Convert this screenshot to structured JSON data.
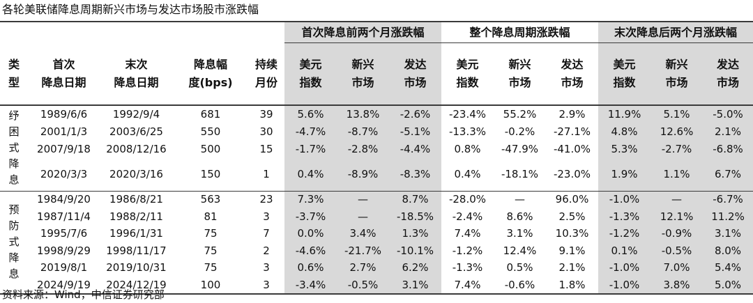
{
  "title": "各轮美联储降息周期新兴市场与发达市场股市涨跌幅",
  "source": "资料来源：Wind，中信证券研究部",
  "group_headers": [
    "首次降息前两个月涨跌幅",
    "整个降息周期涨跌幅",
    "末次降息后两个月涨跌幅"
  ],
  "col_headers": {
    "type": [
      "类",
      "型"
    ],
    "first_date": [
      "首次",
      "降息日期"
    ],
    "last_date": [
      "末次",
      "降息日期"
    ],
    "bps": [
      "降息幅",
      "度(bps)"
    ],
    "months": [
      "持续",
      "月份"
    ],
    "usd": [
      "美元",
      "指数"
    ],
    "em": [
      "新兴",
      "市场"
    ],
    "dm": [
      "发达",
      "市场"
    ]
  },
  "categories": [
    {
      "chars": [
        "纾",
        "困",
        "式",
        "降",
        "息"
      ]
    },
    {
      "chars": [
        "预",
        "防",
        "式",
        "降",
        "息"
      ]
    }
  ],
  "rows": [
    {
      "first": "1989/6/6",
      "last": "1992/9/4",
      "bps": "681",
      "months": "39",
      "v": [
        "5.6%",
        "13.8%",
        "-2.6%",
        "-23.4%",
        "55.2%",
        "2.9%",
        "11.9%",
        "5.1%",
        "-5.0%"
      ]
    },
    {
      "first": "2001/1/3",
      "last": "2003/6/25",
      "bps": "550",
      "months": "30",
      "v": [
        "-4.7%",
        "-8.7%",
        "-5.1%",
        "-13.3%",
        "-0.2%",
        "-27.1%",
        "4.8%",
        "12.6%",
        "2.1%"
      ]
    },
    {
      "first": "2007/9/18",
      "last": "2008/12/16",
      "bps": "500",
      "months": "15",
      "v": [
        "-1.7%",
        "-2.8%",
        "-4.4%",
        "0.8%",
        "-47.9%",
        "-41.0%",
        "5.3%",
        "-2.7%",
        "-6.8%"
      ]
    },
    {
      "first": "2020/3/3",
      "last": "2020/3/16",
      "bps": "150",
      "months": "1",
      "v": [
        "0.4%",
        "-8.9%",
        "-8.3%",
        "0.4%",
        "-18.1%",
        "-23.0%",
        "1.9%",
        "1.1%",
        "6.7%"
      ]
    },
    {
      "first": "1984/9/20",
      "last": "1986/8/21",
      "bps": "563",
      "months": "23",
      "v": [
        "7.3%",
        "—",
        "8.7%",
        "-28.0%",
        "—",
        "96.0%",
        "-1.0%",
        "—",
        "-6.7%"
      ]
    },
    {
      "first": "1987/11/4",
      "last": "1988/2/11",
      "bps": "81",
      "months": "3",
      "v": [
        "-3.7%",
        "—",
        "-18.5%",
        "-2.4%",
        "8.6%",
        "2.5%",
        "-1.3%",
        "12.1%",
        "11.2%"
      ]
    },
    {
      "first": "1995/7/6",
      "last": "1996/1/31",
      "bps": "75",
      "months": "7",
      "v": [
        "0.0%",
        "3.4%",
        "1.3%",
        "7.4%",
        "3.1%",
        "10.3%",
        "-1.2%",
        "-0.9%",
        "3.1%"
      ]
    },
    {
      "first": "1998/9/29",
      "last": "1998/11/17",
      "bps": "75",
      "months": "2",
      "v": [
        "-4.6%",
        "-21.7%",
        "-10.1%",
        "-1.2%",
        "12.4%",
        "9.1%",
        "0.1%",
        "-0.5%",
        "8.0%"
      ]
    },
    {
      "first": "2019/8/1",
      "last": "2019/10/31",
      "bps": "75",
      "months": "3",
      "v": [
        "0.6%",
        "2.7%",
        "6.2%",
        "-1.3%",
        "0.5%",
        "2.1%",
        "-1.0%",
        "7.0%",
        "5.4%"
      ]
    },
    {
      "first": "2024/9/19",
      "last": "2024/12/19",
      "bps": "100",
      "months": "3",
      "v": [
        "-3.4%",
        "-0.5%",
        "3.1%",
        "7.4%",
        "-0.6%",
        "1.8%",
        "-1.0%",
        "3.8%",
        "5.0%"
      ]
    }
  ]
}
